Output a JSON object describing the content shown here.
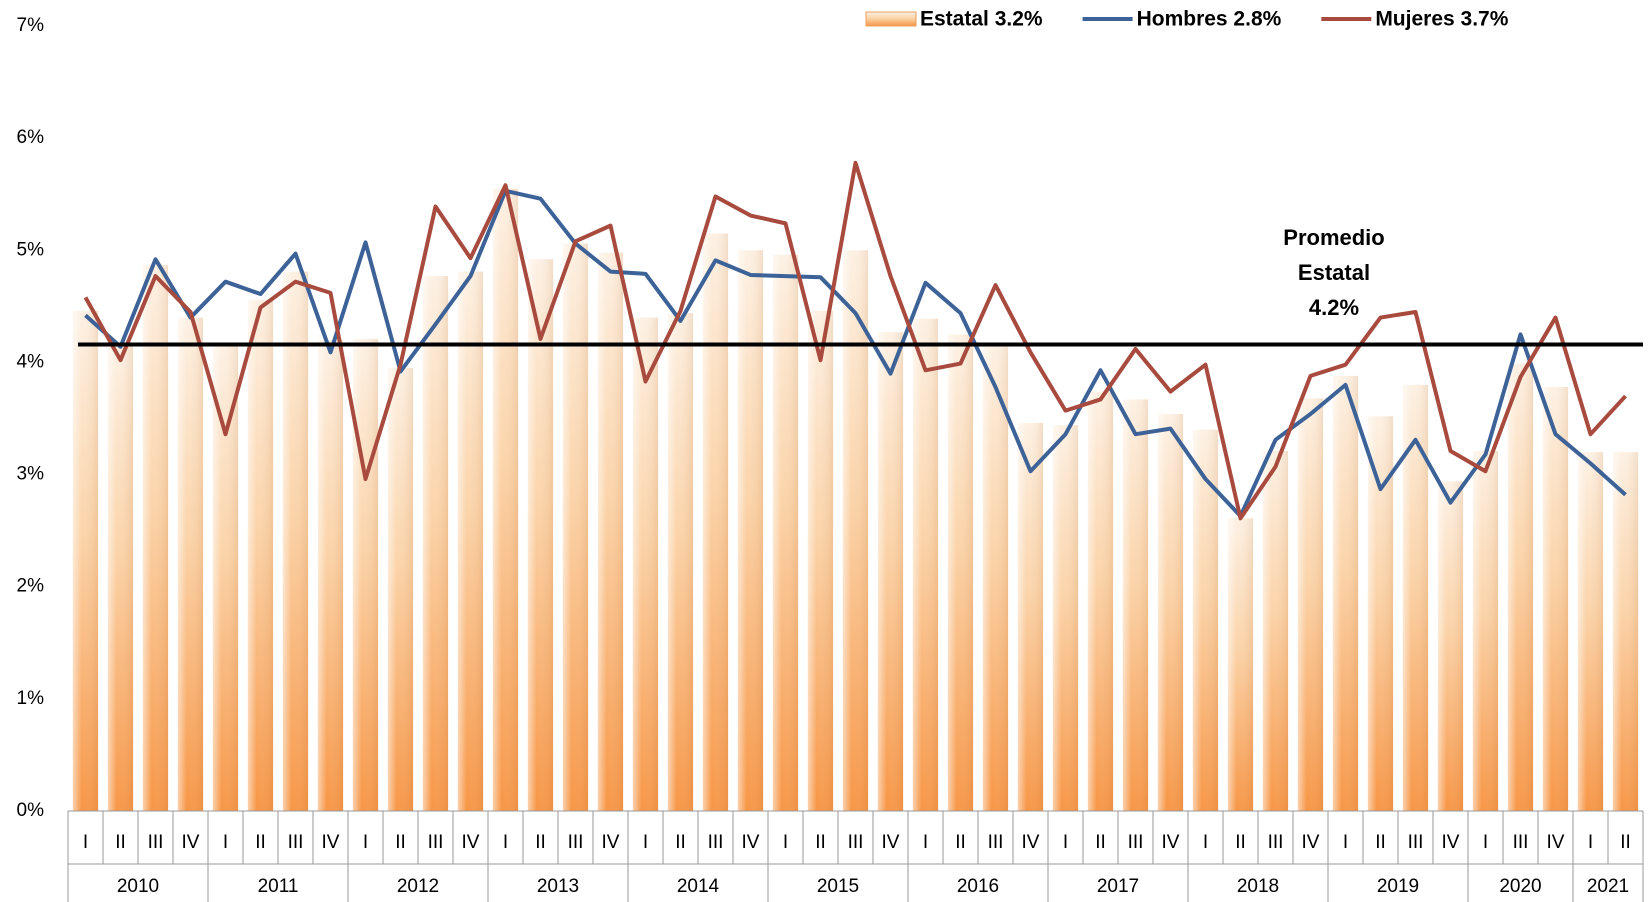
{
  "chart_data": {
    "type": "bar_line",
    "categories": [
      "I",
      "II",
      "III",
      "IV",
      "I",
      "II",
      "III",
      "IV",
      "I",
      "II",
      "III",
      "IV",
      "I",
      "II",
      "III",
      "IV",
      "I",
      "II",
      "III",
      "IV",
      "I",
      "II",
      "III",
      "IV",
      "I",
      "II",
      "III",
      "IV",
      "I",
      "II",
      "III",
      "IV",
      "I",
      "II",
      "III",
      "IV",
      "I",
      "II",
      "III",
      "IV",
      "I",
      "III",
      "IV",
      "I",
      "II"
    ],
    "year_groups": [
      {
        "label": "2010",
        "span": 4
      },
      {
        "label": "2011",
        "span": 4
      },
      {
        "label": "2012",
        "span": 4
      },
      {
        "label": "2013",
        "span": 4
      },
      {
        "label": "2014",
        "span": 4
      },
      {
        "label": "2015",
        "span": 4
      },
      {
        "label": "2016",
        "span": 4
      },
      {
        "label": "2017",
        "span": 4
      },
      {
        "label": "2018",
        "span": 4
      },
      {
        "label": "2019",
        "span": 4
      },
      {
        "label": "2020",
        "span": 3
      },
      {
        "label": "2021",
        "span": 2
      }
    ],
    "series": [
      {
        "name": "Estatal 3.2%",
        "kind": "bar",
        "color": "#f79646",
        "values": [
          4.46,
          4.15,
          4.87,
          4.4,
          4.15,
          4.56,
          4.81,
          4.2,
          4.21,
          3.95,
          4.77,
          4.81,
          5.55,
          4.92,
          5.06,
          4.98,
          4.4,
          4.44,
          5.15,
          5.0,
          4.96,
          4.46,
          5.0,
          4.27,
          4.39,
          4.25,
          4.14,
          3.46,
          3.44,
          3.74,
          3.67,
          3.54,
          3.4,
          2.61,
          3.21,
          3.68,
          3.88,
          3.52,
          3.8,
          2.94,
          3.21,
          3.99,
          3.78,
          3.2,
          3.2
        ]
      },
      {
        "name": "Hombres 2.8%",
        "kind": "line",
        "color": "#3c6298",
        "values": [
          4.42,
          4.14,
          4.92,
          4.4,
          4.72,
          4.61,
          4.97,
          4.09,
          5.07,
          3.92,
          4.34,
          4.77,
          5.53,
          5.46,
          5.06,
          4.81,
          4.79,
          4.37,
          4.91,
          4.78,
          4.77,
          4.76,
          4.44,
          3.9,
          4.71,
          4.44,
          3.78,
          3.03,
          3.36,
          3.93,
          3.36,
          3.41,
          2.96,
          2.63,
          3.31,
          3.54,
          3.8,
          2.87,
          3.31,
          2.75,
          3.18,
          4.25,
          3.36,
          3.1,
          2.82
        ]
      },
      {
        "name": "Mujeres 3.7%",
        "kind": "line",
        "color": "#a84a3e",
        "values": [
          4.58,
          4.02,
          4.77,
          4.45,
          3.36,
          4.49,
          4.72,
          4.62,
          2.96,
          3.98,
          5.39,
          4.93,
          5.58,
          4.21,
          5.08,
          5.22,
          3.83,
          4.46,
          5.48,
          5.31,
          5.24,
          4.02,
          5.78,
          4.77,
          3.93,
          3.99,
          4.69,
          4.09,
          3.57,
          3.67,
          4.12,
          3.74,
          3.98,
          2.61,
          3.07,
          3.88,
          3.98,
          4.4,
          4.45,
          3.21,
          3.03,
          3.87,
          4.4,
          3.36,
          3.7
        ]
      }
    ],
    "average_line": 4.16,
    "annotation": [
      "Promedio",
      "Estatal",
      "4.2%"
    ],
    "ylim": [
      0,
      7
    ],
    "yticks": [
      {
        "value": 0,
        "label": "0%"
      },
      {
        "value": 1,
        "label": "1%"
      },
      {
        "value": 2,
        "label": "2%"
      },
      {
        "value": 3,
        "label": "3%"
      },
      {
        "value": 4,
        "label": "4%"
      },
      {
        "value": 5,
        "label": "5%"
      },
      {
        "value": 6,
        "label": "6%"
      },
      {
        "value": 7,
        "label": "7%"
      }
    ],
    "legend": "top-right"
  }
}
